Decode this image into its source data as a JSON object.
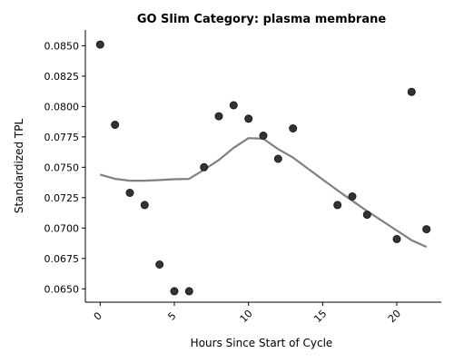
{
  "chart_data": {
    "type": "scatter",
    "title": "GO Slim Category: plasma membrane",
    "xlabel": "Hours Since Start of Cycle",
    "ylabel": "Standardized TPL",
    "xlim": [
      -1,
      23
    ],
    "ylim": [
      0.0639,
      0.0863
    ],
    "xticks": [
      0,
      5,
      10,
      15,
      20
    ],
    "xtick_labels": [
      "0",
      "5",
      "10",
      "15",
      "20"
    ],
    "yticks": [
      0.065,
      0.0675,
      0.07,
      0.0725,
      0.075,
      0.0775,
      0.08,
      0.0825,
      0.085
    ],
    "ytick_labels": [
      "0.0650",
      "0.0675",
      "0.0700",
      "0.0725",
      "0.0750",
      "0.0775",
      "0.0800",
      "0.0825",
      "0.0850"
    ],
    "grid": false,
    "points": {
      "x": [
        0,
        1,
        2,
        3,
        4,
        5,
        6,
        7,
        8,
        9,
        10,
        11,
        12,
        13,
        16,
        17,
        18,
        20,
        21,
        22
      ],
      "y": [
        0.0851,
        0.0785,
        0.0729,
        0.0719,
        0.067,
        0.0648,
        0.0648,
        0.075,
        0.0792,
        0.0801,
        0.079,
        0.0776,
        0.0757,
        0.0782,
        0.0719,
        0.0726,
        0.0711,
        0.0691,
        0.0812,
        0.0699
      ],
      "color": "#333333"
    },
    "trend": {
      "x": [
        0,
        1,
        2,
        3,
        4,
        5,
        6,
        7,
        8,
        9,
        10,
        11,
        12,
        13,
        14,
        15,
        16,
        17,
        18,
        19,
        20,
        21,
        22
      ],
      "y": [
        0.0744,
        0.07405,
        0.0739,
        0.0739,
        0.07395,
        0.07402,
        0.07405,
        0.0748,
        0.0756,
        0.0766,
        0.0774,
        0.07735,
        0.0765,
        0.0758,
        0.0749,
        0.074,
        0.0731,
        0.07225,
        0.0714,
        0.0706,
        0.0698,
        0.069,
        0.06845
      ],
      "color": "#808080"
    }
  }
}
